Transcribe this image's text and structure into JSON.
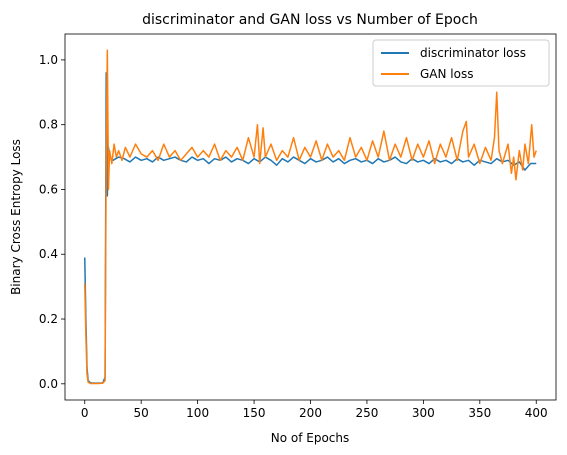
{
  "chart_data": {
    "type": "line",
    "title": "discriminator and GAN loss vs Number of Epoch",
    "xlabel": "No of Epochs",
    "ylabel": "Binary Cross Entropy Loss",
    "xlim": [
      -17.5,
      417.5
    ],
    "ylim": [
      -0.05,
      1.08
    ],
    "xticks": [
      0,
      50,
      100,
      150,
      200,
      250,
      300,
      350,
      400
    ],
    "yticks": [
      0.0,
      0.2,
      0.4,
      0.6,
      0.8,
      1.0
    ],
    "xtick_labels": [
      "0",
      "50",
      "100",
      "150",
      "200",
      "250",
      "300",
      "350",
      "400"
    ],
    "ytick_labels": [
      "0.0",
      "0.2",
      "0.4",
      "0.6",
      "0.8",
      "1.0"
    ],
    "grid": false,
    "legend_position": "top-right",
    "series": [
      {
        "name": "discriminator loss",
        "color": "#1f77b4",
        "points": [
          [
            0,
            0.39
          ],
          [
            1,
            0.2
          ],
          [
            2,
            0.05
          ],
          [
            3,
            0.01
          ],
          [
            5,
            0.003
          ],
          [
            8,
            0.002
          ],
          [
            12,
            0.002
          ],
          [
            16,
            0.003
          ],
          [
            18,
            0.02
          ],
          [
            19,
            0.96
          ],
          [
            20,
            0.58
          ],
          [
            21,
            0.73
          ],
          [
            22,
            0.7
          ],
          [
            25,
            0.69
          ],
          [
            30,
            0.7
          ],
          [
            35,
            0.695
          ],
          [
            40,
            0.685
          ],
          [
            45,
            0.7
          ],
          [
            50,
            0.69
          ],
          [
            55,
            0.695
          ],
          [
            60,
            0.685
          ],
          [
            65,
            0.7
          ],
          [
            70,
            0.69
          ],
          [
            75,
            0.695
          ],
          [
            80,
            0.7
          ],
          [
            85,
            0.69
          ],
          [
            90,
            0.685
          ],
          [
            95,
            0.7
          ],
          [
            100,
            0.69
          ],
          [
            105,
            0.695
          ],
          [
            110,
            0.68
          ],
          [
            115,
            0.695
          ],
          [
            120,
            0.69
          ],
          [
            125,
            0.7
          ],
          [
            130,
            0.685
          ],
          [
            135,
            0.695
          ],
          [
            140,
            0.69
          ],
          [
            145,
            0.68
          ],
          [
            150,
            0.695
          ],
          [
            155,
            0.685
          ],
          [
            160,
            0.7
          ],
          [
            165,
            0.69
          ],
          [
            170,
            0.675
          ],
          [
            175,
            0.695
          ],
          [
            180,
            0.685
          ],
          [
            185,
            0.7
          ],
          [
            190,
            0.69
          ],
          [
            195,
            0.68
          ],
          [
            200,
            0.695
          ],
          [
            205,
            0.685
          ],
          [
            210,
            0.69
          ],
          [
            215,
            0.7
          ],
          [
            220,
            0.685
          ],
          [
            225,
            0.695
          ],
          [
            230,
            0.68
          ],
          [
            235,
            0.69
          ],
          [
            240,
            0.695
          ],
          [
            245,
            0.685
          ],
          [
            250,
            0.69
          ],
          [
            255,
            0.68
          ],
          [
            260,
            0.695
          ],
          [
            265,
            0.685
          ],
          [
            270,
            0.69
          ],
          [
            275,
            0.7
          ],
          [
            280,
            0.685
          ],
          [
            285,
            0.68
          ],
          [
            290,
            0.695
          ],
          [
            295,
            0.685
          ],
          [
            300,
            0.69
          ],
          [
            305,
            0.68
          ],
          [
            310,
            0.695
          ],
          [
            315,
            0.685
          ],
          [
            320,
            0.69
          ],
          [
            325,
            0.68
          ],
          [
            330,
            0.695
          ],
          [
            335,
            0.685
          ],
          [
            340,
            0.69
          ],
          [
            345,
            0.675
          ],
          [
            350,
            0.69
          ],
          [
            355,
            0.685
          ],
          [
            360,
            0.68
          ],
          [
            365,
            0.695
          ],
          [
            370,
            0.685
          ],
          [
            375,
            0.69
          ],
          [
            380,
            0.675
          ],
          [
            385,
            0.685
          ],
          [
            390,
            0.66
          ],
          [
            395,
            0.68
          ],
          [
            400,
            0.68
          ]
        ]
      },
      {
        "name": "GAN loss",
        "color": "#ff7f0e",
        "points": [
          [
            0,
            0.31
          ],
          [
            1,
            0.15
          ],
          [
            2,
            0.03
          ],
          [
            3,
            0.005
          ],
          [
            5,
            0.001
          ],
          [
            8,
            0.001
          ],
          [
            12,
            0.001
          ],
          [
            16,
            0.002
          ],
          [
            18,
            0.01
          ],
          [
            19,
            0.7
          ],
          [
            20,
            1.03
          ],
          [
            21,
            0.6
          ],
          [
            22,
            0.72
          ],
          [
            24,
            0.68
          ],
          [
            26,
            0.74
          ],
          [
            28,
            0.7
          ],
          [
            30,
            0.72
          ],
          [
            33,
            0.69
          ],
          [
            36,
            0.73
          ],
          [
            40,
            0.7
          ],
          [
            45,
            0.74
          ],
          [
            50,
            0.71
          ],
          [
            55,
            0.7
          ],
          [
            60,
            0.72
          ],
          [
            65,
            0.69
          ],
          [
            70,
            0.74
          ],
          [
            75,
            0.7
          ],
          [
            80,
            0.72
          ],
          [
            85,
            0.69
          ],
          [
            90,
            0.71
          ],
          [
            95,
            0.73
          ],
          [
            100,
            0.7
          ],
          [
            105,
            0.72
          ],
          [
            110,
            0.7
          ],
          [
            115,
            0.74
          ],
          [
            120,
            0.69
          ],
          [
            125,
            0.72
          ],
          [
            130,
            0.7
          ],
          [
            135,
            0.73
          ],
          [
            140,
            0.69
          ],
          [
            145,
            0.76
          ],
          [
            150,
            0.7
          ],
          [
            153,
            0.8
          ],
          [
            155,
            0.68
          ],
          [
            158,
            0.79
          ],
          [
            160,
            0.7
          ],
          [
            165,
            0.74
          ],
          [
            170,
            0.69
          ],
          [
            175,
            0.72
          ],
          [
            180,
            0.7
          ],
          [
            185,
            0.76
          ],
          [
            190,
            0.69
          ],
          [
            195,
            0.73
          ],
          [
            200,
            0.7
          ],
          [
            205,
            0.75
          ],
          [
            210,
            0.69
          ],
          [
            215,
            0.74
          ],
          [
            220,
            0.7
          ],
          [
            225,
            0.72
          ],
          [
            230,
            0.69
          ],
          [
            235,
            0.76
          ],
          [
            240,
            0.7
          ],
          [
            245,
            0.73
          ],
          [
            250,
            0.69
          ],
          [
            255,
            0.75
          ],
          [
            260,
            0.7
          ],
          [
            265,
            0.78
          ],
          [
            270,
            0.69
          ],
          [
            275,
            0.74
          ],
          [
            280,
            0.7
          ],
          [
            285,
            0.76
          ],
          [
            290,
            0.69
          ],
          [
            295,
            0.74
          ],
          [
            300,
            0.7
          ],
          [
            305,
            0.75
          ],
          [
            310,
            0.68
          ],
          [
            315,
            0.74
          ],
          [
            320,
            0.7
          ],
          [
            325,
            0.76
          ],
          [
            330,
            0.69
          ],
          [
            335,
            0.78
          ],
          [
            338,
            0.81
          ],
          [
            340,
            0.7
          ],
          [
            345,
            0.74
          ],
          [
            350,
            0.68
          ],
          [
            355,
            0.73
          ],
          [
            360,
            0.69
          ],
          [
            363,
            0.76
          ],
          [
            365,
            0.9
          ],
          [
            367,
            0.72
          ],
          [
            370,
            0.68
          ],
          [
            375,
            0.74
          ],
          [
            378,
            0.65
          ],
          [
            380,
            0.7
          ],
          [
            382,
            0.63
          ],
          [
            385,
            0.72
          ],
          [
            388,
            0.66
          ],
          [
            390,
            0.74
          ],
          [
            393,
            0.68
          ],
          [
            396,
            0.8
          ],
          [
            398,
            0.7
          ],
          [
            400,
            0.72
          ]
        ]
      }
    ]
  }
}
